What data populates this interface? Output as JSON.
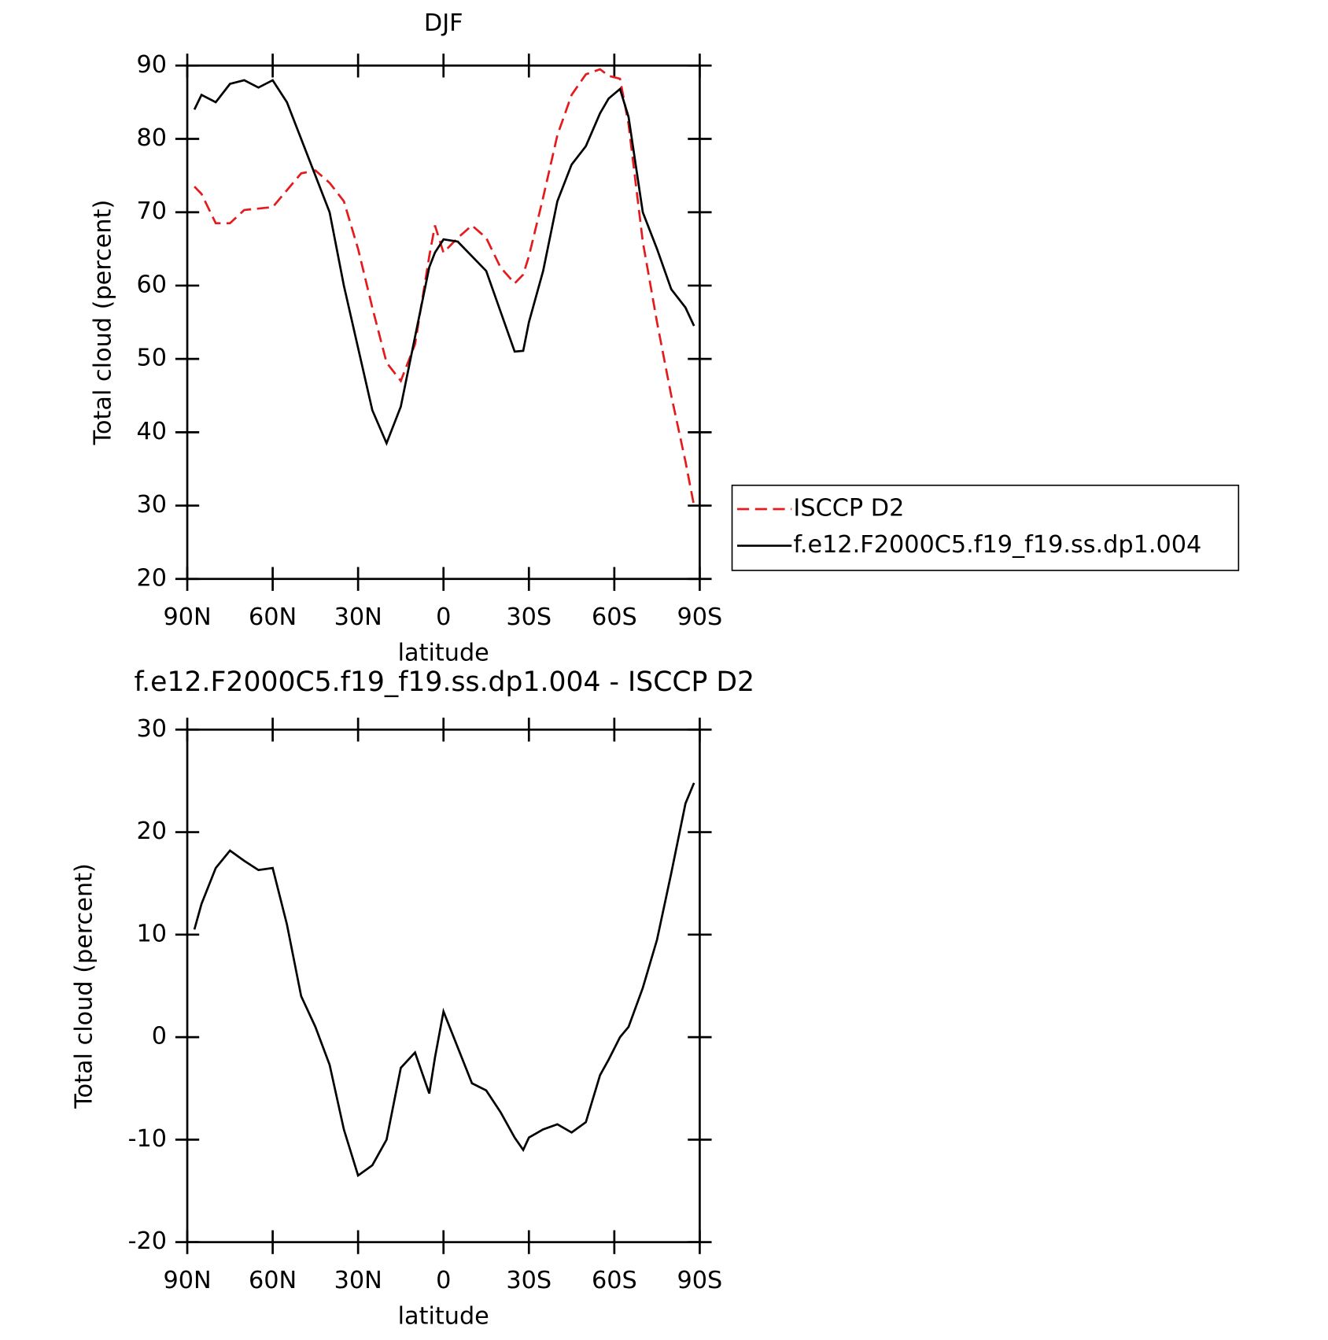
{
  "chart_data": [
    {
      "type": "line",
      "title": "DJF",
      "xlabel": "latitude",
      "ylabel": "Total cloud (percent)",
      "x": [
        87.5,
        85,
        80,
        75,
        70,
        65,
        60,
        55,
        50,
        45,
        40,
        35,
        30,
        25,
        20,
        15,
        10,
        5,
        3,
        0,
        -5,
        -10,
        -15,
        -20,
        -25,
        -28,
        -30,
        -35,
        -40,
        -45,
        -50,
        -55,
        -58,
        -62,
        -65,
        -70,
        -75,
        -80,
        -85,
        -88
      ],
      "series": [
        {
          "name": "ISCCP D2",
          "color": "#e41a1c",
          "dash": true,
          "values": [
            73.5,
            72.5,
            68.5,
            68.5,
            70.3,
            70.5,
            70.7,
            73,
            75.3,
            75.7,
            74,
            71.5,
            65,
            57,
            49.5,
            47,
            52,
            64,
            68.2,
            64.5,
            66.5,
            68.2,
            66.5,
            62.5,
            60.3,
            61.5,
            64,
            72,
            80.5,
            86,
            88.8,
            89.5,
            88.6,
            88.2,
            82,
            66,
            55,
            45,
            36,
            30
          ]
        },
        {
          "name": "f.e12.F2000C5.f19_f19.ss.dp1.004",
          "color": "#000000",
          "dash": false,
          "values": [
            84,
            86,
            85,
            87.5,
            88,
            87,
            88,
            85,
            80,
            75,
            70,
            60,
            51.5,
            43,
            38.5,
            43.5,
            53,
            62.5,
            64.5,
            66.3,
            66,
            64,
            62,
            56.5,
            51,
            51.1,
            55,
            62,
            71.5,
            76.5,
            79,
            83.5,
            85.5,
            86.8,
            83,
            70,
            65,
            59.5,
            57,
            54.5
          ]
        }
      ],
      "xlim": [
        90,
        -90
      ],
      "xticks": [
        {
          "value": 90,
          "label": "90N"
        },
        {
          "value": 60,
          "label": "60N"
        },
        {
          "value": 30,
          "label": "30N"
        },
        0,
        {
          "value": -30,
          "label": "30S"
        },
        {
          "value": -60,
          "label": "60S"
        },
        {
          "value": -90,
          "label": "90S"
        }
      ],
      "ylim": [
        20,
        90
      ],
      "yticks": [
        20,
        30,
        40,
        50,
        60,
        70,
        80,
        90
      ],
      "legend": "right"
    },
    {
      "type": "line",
      "title": "f.e12.F2000C5.f19_f19.ss.dp1.004 - ISCCP D2",
      "xlabel": "latitude",
      "ylabel": "Total cloud (percent)",
      "x": [
        87.5,
        85,
        80,
        75,
        70,
        65,
        60,
        55,
        50,
        45,
        40,
        35,
        30,
        25,
        20,
        15,
        10,
        5,
        3,
        0,
        -5,
        -10,
        -15,
        -20,
        -25,
        -28,
        -30,
        -35,
        -40,
        -45,
        -50,
        -55,
        -58,
        -62,
        -65,
        -70,
        -75,
        -80,
        -85,
        -88
      ],
      "series": [
        {
          "color": "#000000",
          "dash": false,
          "values": [
            10.5,
            13,
            16.5,
            18.2,
            17.2,
            16.3,
            16.5,
            11,
            4,
            1,
            -2.7,
            -9,
            -13.5,
            -12.5,
            -10,
            -3,
            -1.5,
            -5.5,
            -2,
            2.5,
            -1,
            -4.5,
            -5.2,
            -7.3,
            -9.8,
            -11,
            -9.8,
            -9,
            -8.5,
            -9.3,
            -8.3,
            -3.7,
            -2.2,
            0,
            1,
            4.8,
            9.5,
            16,
            22.8,
            24.8
          ]
        }
      ],
      "xlim": [
        90,
        -90
      ],
      "xticks": [
        {
          "value": 90,
          "label": "90N"
        },
        {
          "value": 60,
          "label": "60N"
        },
        {
          "value": 30,
          "label": "30N"
        },
        0,
        {
          "value": -30,
          "label": "30S"
        },
        {
          "value": -60,
          "label": "60S"
        },
        {
          "value": -90,
          "label": "90S"
        }
      ],
      "ylim": [
        -20,
        30
      ],
      "yticks": [
        -20,
        -10,
        0,
        10,
        20,
        30
      ]
    }
  ]
}
